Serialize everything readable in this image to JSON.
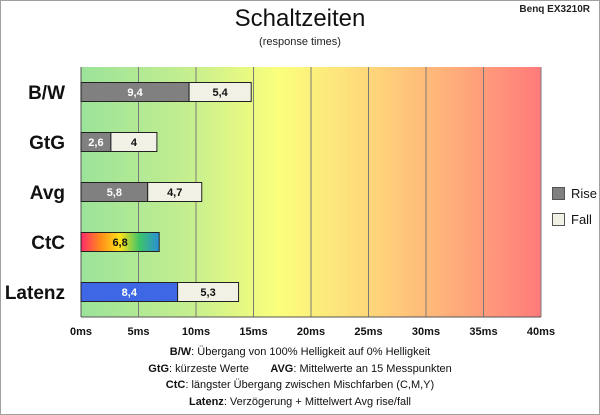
{
  "header": {
    "title": "Schaltzeiten",
    "subtitle": "(response times)",
    "monitor": "Benq EX3210R"
  },
  "legend": {
    "rise_label": "Rise",
    "fall_label": "Fall"
  },
  "colors": {
    "rise": "#808080",
    "fall": "#f1f1e6",
    "latency_rise": "#3e67e6",
    "gradient_green": "#9be39a",
    "gradient_yellow": "#fbff7c",
    "gradient_red": "#ff7a7a"
  },
  "chart_data": {
    "type": "bar",
    "orientation": "horizontal",
    "stacked": true,
    "categories": [
      "B/W",
      "GtG",
      "Avg",
      "CtC",
      "Latenz"
    ],
    "series": [
      {
        "name": "Rise",
        "values": [
          9.4,
          2.6,
          5.8,
          6.8,
          8.4
        ]
      },
      {
        "name": "Fall",
        "values": [
          5.4,
          4,
          4.7,
          null,
          5.3
        ]
      }
    ],
    "data_labels": {
      "Rise": [
        "9,4",
        "2,6",
        "5,8",
        "6,8",
        "8,4"
      ],
      "Fall": [
        "5,4",
        "4",
        "4,7",
        "",
        "5,3"
      ]
    },
    "x_ticks": [
      "0ms",
      "5ms",
      "10ms",
      "15ms",
      "20ms",
      "25ms",
      "30ms",
      "35ms",
      "40ms"
    ],
    "xlim": [
      0,
      40
    ],
    "grid": true,
    "legend_position": "right"
  },
  "notes": [
    {
      "key": "B/W",
      "text": ":  Übergang von 100% Helligkeit auf 0% Helligkeit"
    },
    {
      "key": "GtG",
      "text": ": kürzeste  Werte",
      "key2": "AVG",
      "text2": ": Mittelwerte  an 15 Messpunkten"
    },
    {
      "key": "CtC",
      "text": ": längster Übergang  zwischen Mischfarben (C,M,Y)"
    },
    {
      "key": "Latenz",
      "text": ": Verzögerung  + Mittelwert  Avg rise/fall"
    }
  ]
}
